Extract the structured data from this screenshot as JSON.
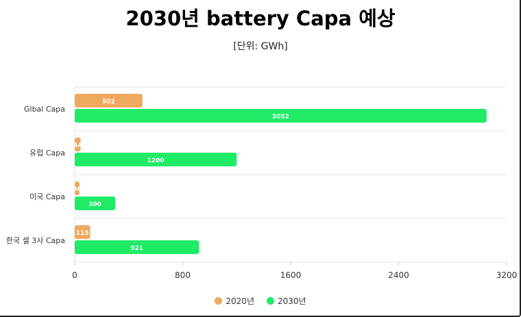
{
  "chart_data": {
    "type": "bar",
    "orientation": "horizontal",
    "title": "2030년 battery Capa 예상",
    "subtitle": "[단위: GWh]",
    "categories": [
      "Glbal Capa",
      "유럽 Capa",
      "미국 Capa",
      "한국 셀 3사 Capa"
    ],
    "series": [
      {
        "name": "2020년",
        "values": [
          502,
          44,
          36,
          115
        ],
        "color": "#EFA95F"
      },
      {
        "name": "2030년",
        "values": [
          3052,
          1200,
          300,
          921
        ],
        "color": "#1FEB66"
      }
    ],
    "xlim": [
      0,
      3200
    ],
    "xticks": [
      0,
      800,
      1600,
      2400,
      3200
    ],
    "grid": true,
    "legend": "bottom"
  }
}
